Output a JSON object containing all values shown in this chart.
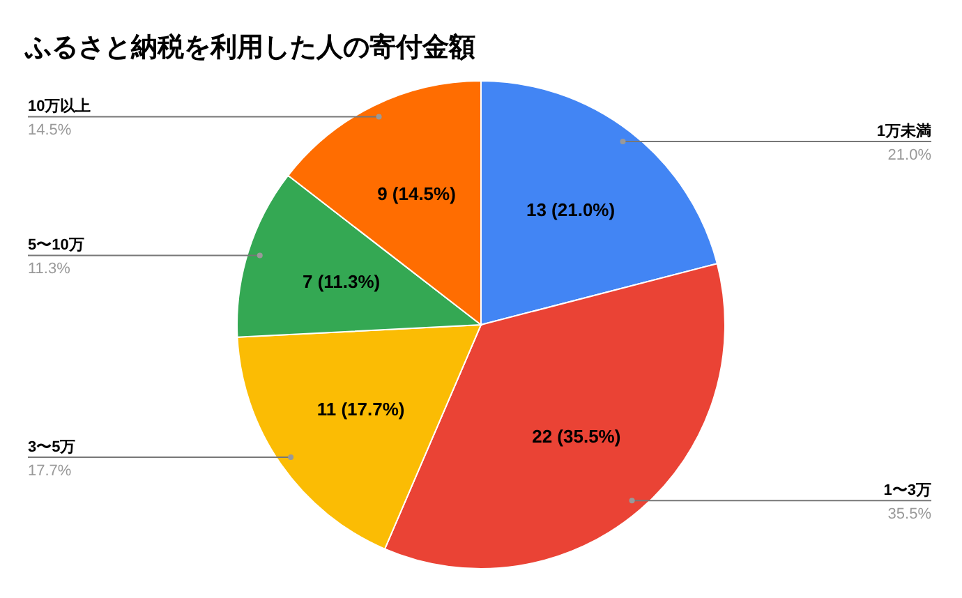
{
  "chart_data": {
    "type": "pie",
    "title": "ふるさと納税を利用した人の寄付金額",
    "categories": [
      "1万未満",
      "1〜3万",
      "3〜5万",
      "5〜10万",
      "10万以上"
    ],
    "values": [
      13,
      22,
      11,
      7,
      9
    ],
    "colors": [
      "#4285f4",
      "#ea4335",
      "#fbbc04",
      "#34a853",
      "#ff6d01"
    ],
    "value_labels": [
      "13 (21.0%)",
      "22 (35.5%)",
      "11 (17.7%)",
      "7 (11.3%)",
      "9 (14.5%)"
    ],
    "annotations": [
      "21.0%",
      "35.5%",
      "17.7%",
      "11.3%",
      "14.5%"
    ]
  }
}
